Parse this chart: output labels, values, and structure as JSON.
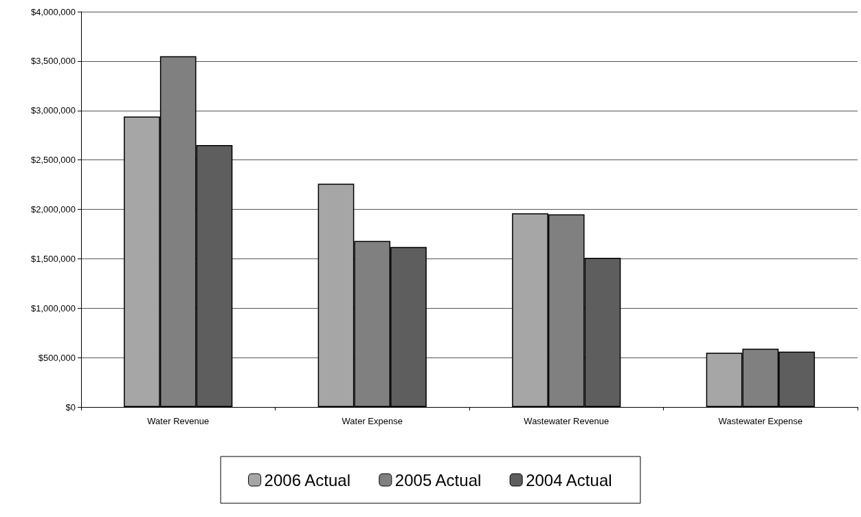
{
  "chart_data": {
    "type": "bar",
    "categories": [
      "Water Revenue",
      "Water Expense",
      "Wastewater Revenue",
      "Wastewater Expense"
    ],
    "series": [
      {
        "name": "2006 Actual",
        "color": "#a6a6a6",
        "values": [
          2940000,
          2260000,
          1960000,
          550000
        ]
      },
      {
        "name": "2005 Actual",
        "color": "#808080",
        "values": [
          3550000,
          1680000,
          1950000,
          590000
        ]
      },
      {
        "name": "2004 Actual",
        "color": "#5e5e5e",
        "values": [
          2650000,
          1620000,
          1510000,
          560000
        ]
      }
    ],
    "ylim": [
      0,
      4000000
    ],
    "yticks": [
      {
        "value": 0,
        "label": "$0"
      },
      {
        "value": 500000,
        "label": "$500,000"
      },
      {
        "value": 1000000,
        "label": "$1,000,000"
      },
      {
        "value": 1500000,
        "label": "$1,500,000"
      },
      {
        "value": 2000000,
        "label": "$2,000,000"
      },
      {
        "value": 2500000,
        "label": "$2,500,000"
      },
      {
        "value": 3000000,
        "label": "$3,000,000"
      },
      {
        "value": 3500000,
        "label": "$3,500,000"
      },
      {
        "value": 4000000,
        "label": "$4,000,000"
      }
    ],
    "grid": "y",
    "legend": "bottom"
  }
}
